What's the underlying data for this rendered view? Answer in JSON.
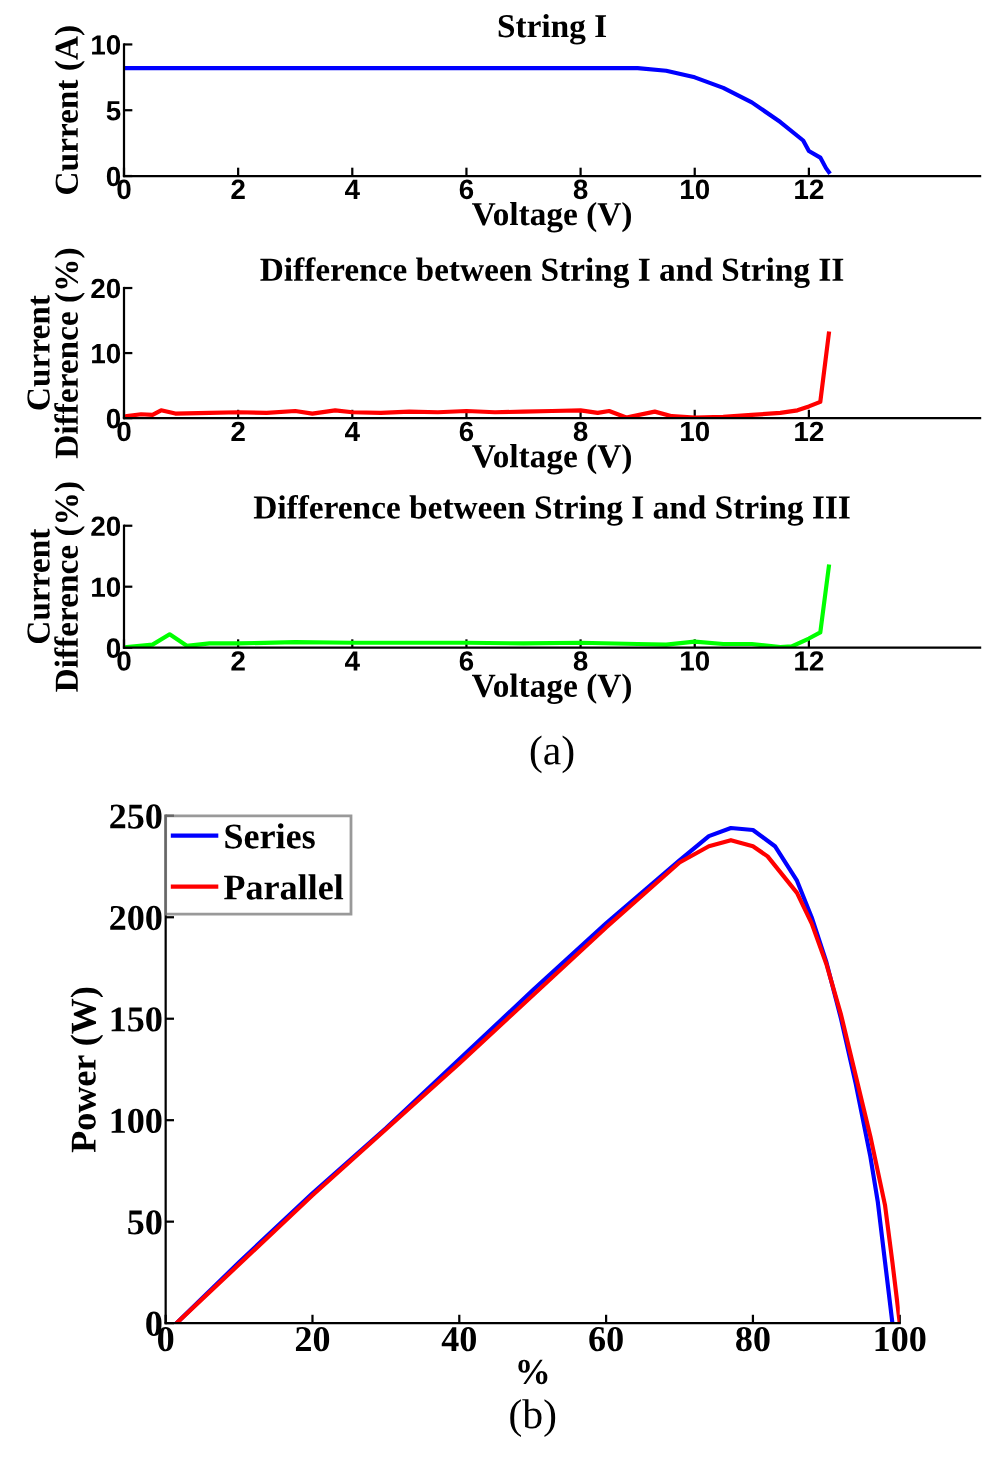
{
  "chart_data": [
    {
      "type": "line",
      "title": "String I",
      "xlabel": "Voltage (V)",
      "ylabel": "Current (A)",
      "xlim": [
        0,
        15
      ],
      "xticks": [
        0,
        2,
        4,
        6,
        8,
        10,
        12
      ],
      "ylim": [
        0,
        10
      ],
      "yticks": [
        0,
        5,
        10
      ],
      "grid": false,
      "legend": false,
      "series": [
        {
          "color": "#0000ff",
          "x": [
            0.05,
            1,
            2,
            3,
            4,
            5,
            6,
            7,
            8,
            9,
            9.5,
            10,
            10.5,
            11,
            11.5,
            11.9,
            12,
            12.2,
            12.3,
            12.35
          ],
          "values": [
            8.2,
            8.2,
            8.2,
            8.2,
            8.2,
            8.2,
            8.2,
            8.2,
            8.2,
            8.2,
            8.0,
            7.5,
            6.7,
            5.6,
            4.1,
            2.7,
            1.9,
            1.4,
            0.6,
            0.3
          ]
        }
      ]
    },
    {
      "type": "line",
      "title": "Difference between String I and String II",
      "xlabel": "Voltage (V)",
      "ylabel": "Current\nDifference (%)",
      "xlim": [
        0,
        15
      ],
      "xticks": [
        0,
        2,
        4,
        6,
        8,
        10,
        12
      ],
      "ylim": [
        0,
        20
      ],
      "yticks": [
        0,
        10,
        20
      ],
      "grid": false,
      "legend": false,
      "series": [
        {
          "color": "#ff0000",
          "x": [
            0.05,
            0.3,
            0.5,
            0.65,
            0.9,
            1.5,
            2,
            2.5,
            3,
            3.3,
            3.7,
            4,
            4.5,
            5,
            5.5,
            6,
            6.5,
            7,
            7.5,
            8,
            8.3,
            8.5,
            8.8,
            9.3,
            9.6,
            10,
            10.5,
            11,
            11.5,
            11.8,
            12,
            12.2,
            12.35
          ],
          "values": [
            0.3,
            0.6,
            0.5,
            1.2,
            0.7,
            0.8,
            0.9,
            0.8,
            1.1,
            0.7,
            1.2,
            0.9,
            0.8,
            1.0,
            0.9,
            1.1,
            0.9,
            1.0,
            1.1,
            1.2,
            0.8,
            1.1,
            0.1,
            1.0,
            0.3,
            0.1,
            0.2,
            0.5,
            0.8,
            1.2,
            1.8,
            2.5,
            13
          ]
        }
      ]
    },
    {
      "type": "line",
      "title": "Difference between String I and String III",
      "xlabel": "Voltage (V)",
      "ylabel": "Current\nDifference (%)",
      "xlim": [
        0,
        15
      ],
      "xticks": [
        0,
        2,
        4,
        6,
        8,
        10,
        12
      ],
      "ylim": [
        0,
        20
      ],
      "yticks": [
        0,
        10,
        20
      ],
      "grid": false,
      "legend": false,
      "annotations": [
        "(a)"
      ],
      "series": [
        {
          "color": "#00ff00",
          "x": [
            0.05,
            0.5,
            0.8,
            1.1,
            1.5,
            2,
            3,
            4,
            5,
            6,
            7,
            8,
            9,
            9.5,
            10,
            10.5,
            11,
            11.5,
            11.7,
            12,
            12.2,
            12.35
          ],
          "values": [
            0.1,
            0.5,
            2.2,
            0.3,
            0.7,
            0.7,
            0.9,
            0.8,
            0.8,
            0.8,
            0.7,
            0.8,
            0.6,
            0.5,
            1.0,
            0.6,
            0.6,
            0.1,
            0.2,
            1.5,
            2.5,
            13.3
          ]
        }
      ]
    },
    {
      "type": "line",
      "xlabel": "%",
      "ylabel": "Power (W)",
      "xlim": [
        0,
        100
      ],
      "xticks": [
        0,
        20,
        40,
        60,
        80,
        100
      ],
      "ylim": [
        0,
        250
      ],
      "yticks": [
        0,
        50,
        100,
        150,
        200,
        250
      ],
      "grid": false,
      "legend": "top left",
      "annotations": [
        "(b)"
      ],
      "series": [
        {
          "name": "Series",
          "color": "#0000ff",
          "x": [
            1.5,
            10,
            20,
            30,
            40,
            50,
            60,
            70,
            74,
            77,
            80,
            83,
            86,
            88,
            90,
            92,
            94,
            96,
            97,
            98,
            99
          ],
          "values": [
            0,
            30,
            64,
            96,
            130,
            164,
            197,
            228,
            240,
            244,
            243,
            235,
            218,
            200,
            178,
            150,
            118,
            82,
            60,
            30,
            0
          ]
        },
        {
          "name": "Parallel",
          "color": "#ff0000",
          "x": [
            1.5,
            20,
            40,
            60,
            70,
            74,
            77,
            80,
            82,
            86,
            88,
            90,
            92,
            94,
            96,
            98,
            99,
            100
          ],
          "values": [
            0,
            63,
            128,
            195,
            227,
            235,
            238,
            235,
            230,
            212,
            197,
            177,
            152,
            122,
            92,
            58,
            30,
            0
          ]
        }
      ]
    }
  ]
}
